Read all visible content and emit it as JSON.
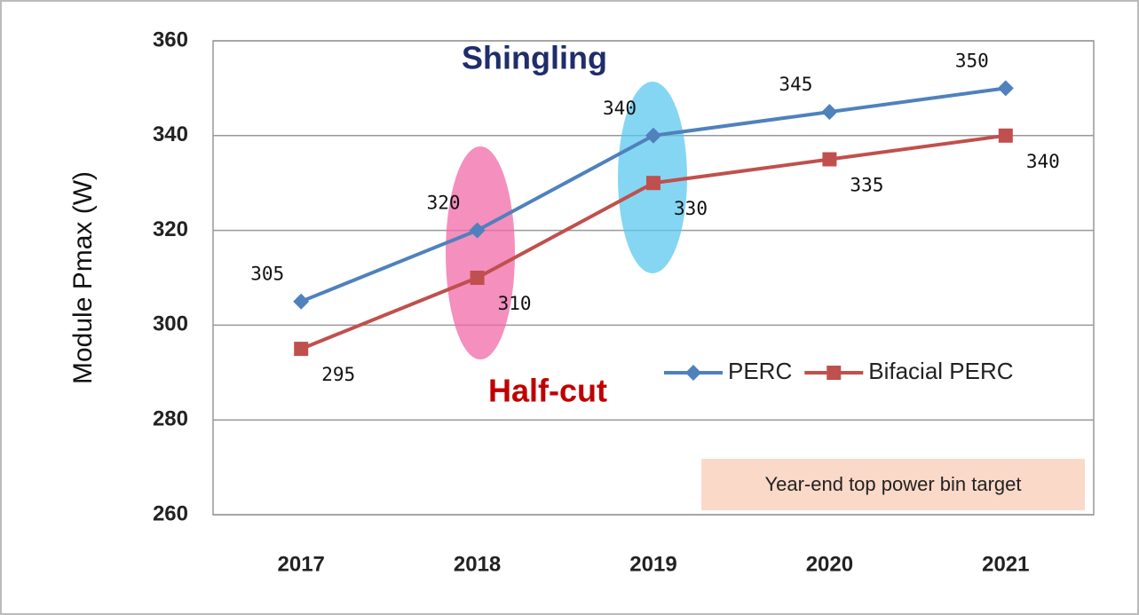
{
  "chart_data": {
    "type": "line",
    "ylabel": "Module Pmax (W)",
    "categories": [
      "2017",
      "2018",
      "2019",
      "2020",
      "2021"
    ],
    "series": [
      {
        "name": "PERC",
        "color": "#4f81bd",
        "marker": "diamond",
        "values": [
          305,
          320,
          340,
          345,
          350
        ]
      },
      {
        "name": "Bifacial PERC",
        "color": "#c0504d",
        "marker": "square",
        "values": [
          295,
          310,
          330,
          335,
          340
        ]
      }
    ],
    "ylim": [
      260,
      360
    ],
    "yticks": [
      260,
      280,
      300,
      320,
      340,
      360
    ],
    "grid": true,
    "annotations": [
      "Shingling",
      "Half-cut",
      "Year-end top power bin target"
    ]
  }
}
